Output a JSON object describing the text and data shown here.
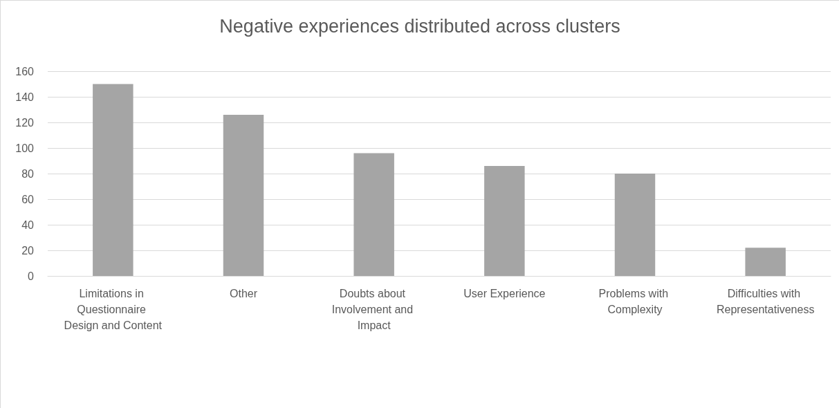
{
  "chart_data": {
    "type": "bar",
    "title": "Negative experiences distributed across clusters",
    "categories": [
      "Limitations in Questionnaire Design and Content",
      "Other",
      "Doubts about Involvement and Impact",
      "User Experience",
      "Problems with Complexity",
      "Difficulties with Representativeness"
    ],
    "values": [
      150,
      126,
      96,
      86,
      80,
      22
    ],
    "color": "#a5a5a5",
    "ylim": [
      0,
      160
    ],
    "yticks": [
      0,
      20,
      40,
      60,
      80,
      100,
      120,
      140,
      160
    ],
    "grid": true
  }
}
